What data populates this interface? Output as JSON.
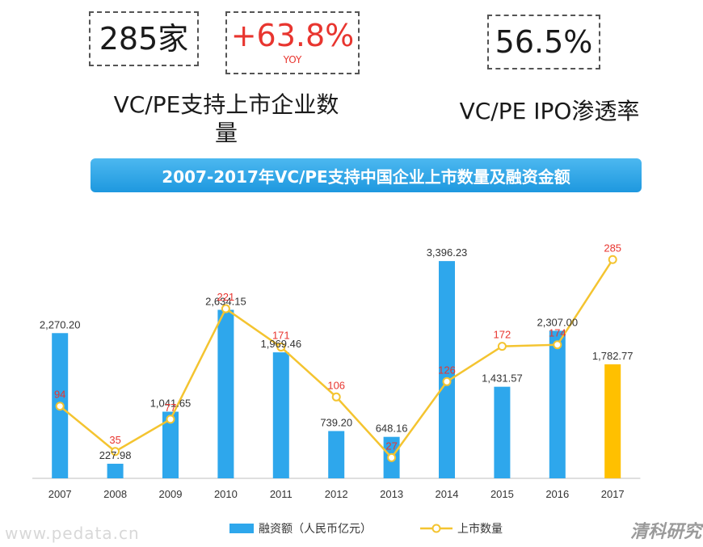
{
  "kpis": {
    "count": "285家",
    "yoy": "+63.8%",
    "yoy_sub": "YOY",
    "penetration": "56.5%"
  },
  "captions": {
    "left": "VC/PE支持上市企业数量",
    "right": "VC/PE IPO渗透率"
  },
  "banner": "2007-2017年VC/PE支持中国企业上市数量及融资金额",
  "watermark": "www.pedata.cn",
  "brand": "清科研究",
  "chart_data": {
    "type": "bar",
    "title": "2007-2017年VC/PE支持中国企业上市数量及融资金额",
    "categories": [
      "2007",
      "2008",
      "2009",
      "2010",
      "2011",
      "2012",
      "2013",
      "2014",
      "2015",
      "2016",
      "2017"
    ],
    "series": [
      {
        "name": "融资额（人民币亿元）",
        "type": "bar",
        "values": [
          2270.2,
          227.98,
          1041.65,
          2634.15,
          1969.46,
          739.2,
          648.16,
          3396.23,
          1431.57,
          2307.0,
          1782.77
        ],
        "labels": [
          "2,270.20",
          "227.98",
          "1,041.65",
          "2,634.15",
          "1,969.46",
          "739.20",
          "648.16",
          "3,396.23",
          "1,431.57",
          "2,307.00",
          "1,782.77"
        ],
        "color": "#2ea7ec",
        "highlight_color": "#ffc000"
      },
      {
        "name": "上市数量",
        "type": "line",
        "values": [
          94,
          35,
          77,
          221,
          171,
          106,
          27,
          126,
          172,
          174,
          285
        ],
        "color": "#f4c430",
        "label_color": "#e8352f"
      }
    ],
    "ylim_bar": [
      0,
      3600
    ],
    "ylim_line": [
      0,
      300
    ],
    "legend_position": "bottom",
    "grid": false
  }
}
